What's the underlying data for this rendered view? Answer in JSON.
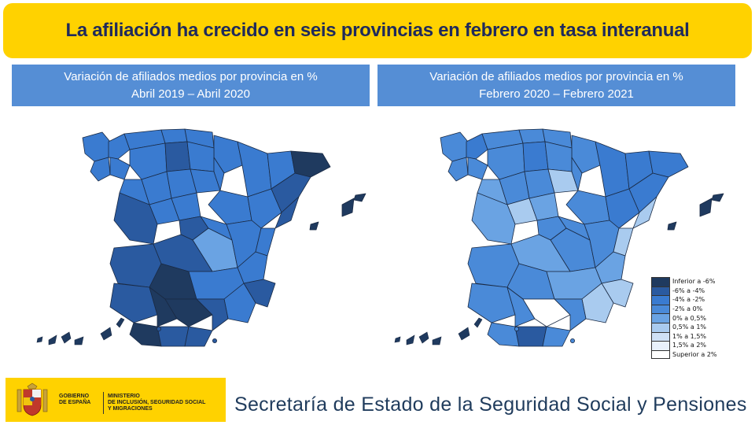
{
  "header": {
    "title": "La afiliación ha crecido en seis provincias en febrero en tasa interanual"
  },
  "maps": [
    {
      "title_line1": "Variación de afiliados medios por provincia en %",
      "title_line2": "Abril 2019 – Abril 2020"
    },
    {
      "title_line1": "Variación de afiliados medios por provincia en %",
      "title_line2": "Febrero 2020 – Febrero 2021"
    }
  ],
  "legend": {
    "items": [
      {
        "label": "Inferior a -6%",
        "color": "#1f3a5f"
      },
      {
        "label": "-6% a -4%",
        "color": "#2a5aa0"
      },
      {
        "label": "-4% a -2%",
        "color": "#3a7bd0"
      },
      {
        "label": "-2% a 0%",
        "color": "#4a8ad8"
      },
      {
        "label": "0% a 0,5%",
        "color": "#6aa3e3"
      },
      {
        "label": "0,5% a 1%",
        "color": "#a9cbef"
      },
      {
        "label": "1% a 1,5%",
        "color": "#cfe1f6"
      },
      {
        "label": "1,5% a 2%",
        "color": "#e8f1fb"
      },
      {
        "label": "Superior a 2%",
        "color": "#ffffff"
      }
    ]
  },
  "footer": {
    "gov_line1": "GOBIERNO",
    "gov_line2": "DE ESPAÑA",
    "ministry_line1": "MINISTERIO",
    "ministry_line2": "DE INCLUSIÓN, SEGURIDAD SOCIAL",
    "ministry_line3": "Y MIGRACIONES",
    "org_name": "Secretaría de Estado de la Seguridad Social y Pensiones"
  },
  "colors": {
    "title_bg": "#ffd200",
    "header_bg": "#558ed5",
    "text_dark": "#1f2a5c"
  }
}
